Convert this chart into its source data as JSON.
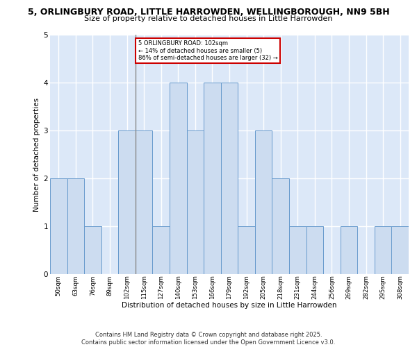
{
  "title_line1": "5, ORLINGBURY ROAD, LITTLE HARROWDEN, WELLINGBOROUGH, NN9 5BH",
  "title_line2": "Size of property relative to detached houses in Little Harrowden",
  "xlabel": "Distribution of detached houses by size in Little Harrowden",
  "ylabel": "Number of detached properties",
  "bins": [
    "50sqm",
    "63sqm",
    "76sqm",
    "89sqm",
    "102sqm",
    "115sqm",
    "127sqm",
    "140sqm",
    "153sqm",
    "166sqm",
    "179sqm",
    "192sqm",
    "205sqm",
    "218sqm",
    "231sqm",
    "244sqm",
    "256sqm",
    "269sqm",
    "282sqm",
    "295sqm",
    "308sqm"
  ],
  "values": [
    2,
    2,
    1,
    0,
    3,
    3,
    1,
    4,
    3,
    4,
    4,
    1,
    3,
    2,
    1,
    1,
    0,
    1,
    0,
    1,
    1
  ],
  "subject_bin_index": 4,
  "subject_label": "5 ORLINGBURY ROAD: 102sqm\n← 14% of detached houses are smaller (5)\n86% of semi-detached houses are larger (32) →",
  "bar_color": "#ccdcf0",
  "bar_edge_color": "#6699cc",
  "subject_line_color": "#888888",
  "annotation_box_color": "#ffffff",
  "annotation_box_edge": "#cc0000",
  "bg_color": "#ffffff",
  "plot_bg_color": "#dce8f8",
  "grid_color": "#ffffff",
  "ylim": [
    0,
    5
  ],
  "yticks": [
    0,
    1,
    2,
    3,
    4,
    5
  ],
  "footer": "Contains HM Land Registry data © Crown copyright and database right 2025.\nContains public sector information licensed under the Open Government Licence v3.0."
}
